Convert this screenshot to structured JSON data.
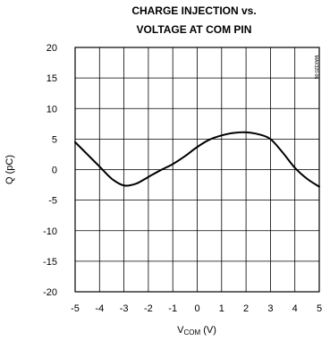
{
  "chart_data": {
    "type": "line",
    "title": [
      "CHARGE INJECTION vs.",
      "VOLTAGE AT COM PIN"
    ],
    "xlabel": {
      "main": "V",
      "subscript": "COM",
      "unit": " (V)"
    },
    "ylabel": "Q (pC)",
    "xlim": [
      -5,
      5
    ],
    "ylim": [
      -20,
      20
    ],
    "x_ticks": [
      -5,
      -4,
      -3,
      -2,
      -1,
      0,
      1,
      2,
      3,
      4,
      5
    ],
    "y_ticks": [
      -20,
      -15,
      -10,
      -5,
      0,
      5,
      10,
      15,
      20
    ],
    "grid": true,
    "part_number": "MAX320-06",
    "series": [
      {
        "x": [
          -5,
          -4.5,
          -4,
          -3.5,
          -3,
          -2.5,
          -2,
          -1.5,
          -1,
          -0.5,
          0,
          0.5,
          1,
          1.5,
          2,
          2.5,
          3,
          3.5,
          4,
          4.5,
          5
        ],
        "values": [
          4.5,
          2.5,
          0.5,
          -1.5,
          -2.6,
          -2.3,
          -1.2,
          -0.1,
          0.9,
          2.2,
          3.7,
          4.9,
          5.6,
          6.0,
          6.1,
          5.8,
          5.0,
          2.8,
          0.3,
          -1.5,
          -2.8
        ]
      }
    ]
  }
}
